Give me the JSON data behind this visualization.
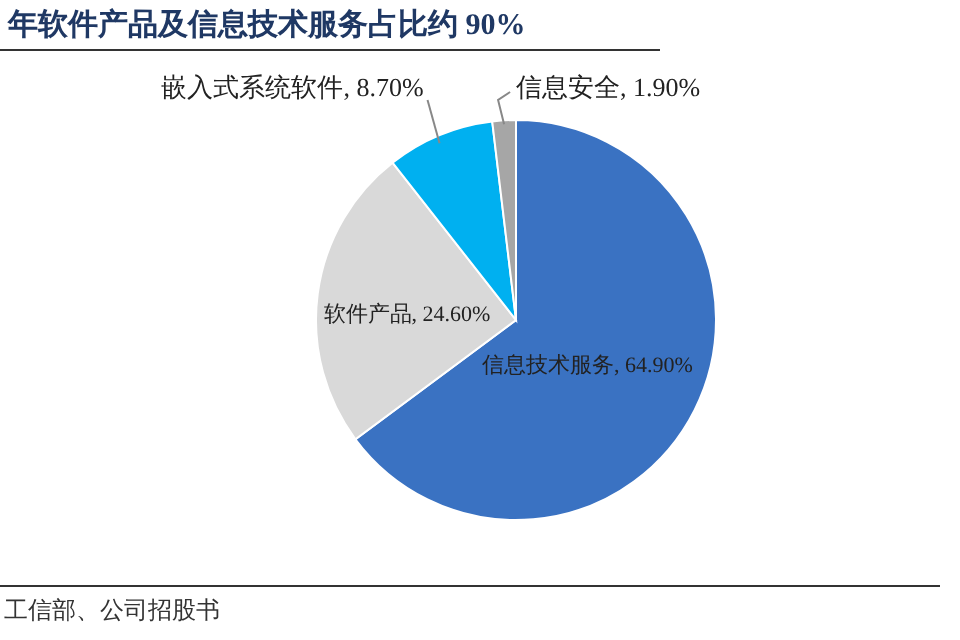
{
  "chart_data": {
    "type": "pie",
    "title": "年软件产品及信息技术服务占比约 90%",
    "categories": [
      "信息技术服务",
      "软件产品",
      "嵌入式系统软件",
      "信息安全"
    ],
    "values": [
      64.9,
      24.6,
      8.7,
      1.9
    ],
    "value_labels": [
      "64.90%",
      "24.60%",
      "8.70%",
      "1.90%"
    ],
    "colors": [
      "#3a72c2",
      "#d9d9d9",
      "#00b0f0",
      "#a6a6a6"
    ],
    "annotations": [
      "工信部、公司招股书"
    ]
  }
}
